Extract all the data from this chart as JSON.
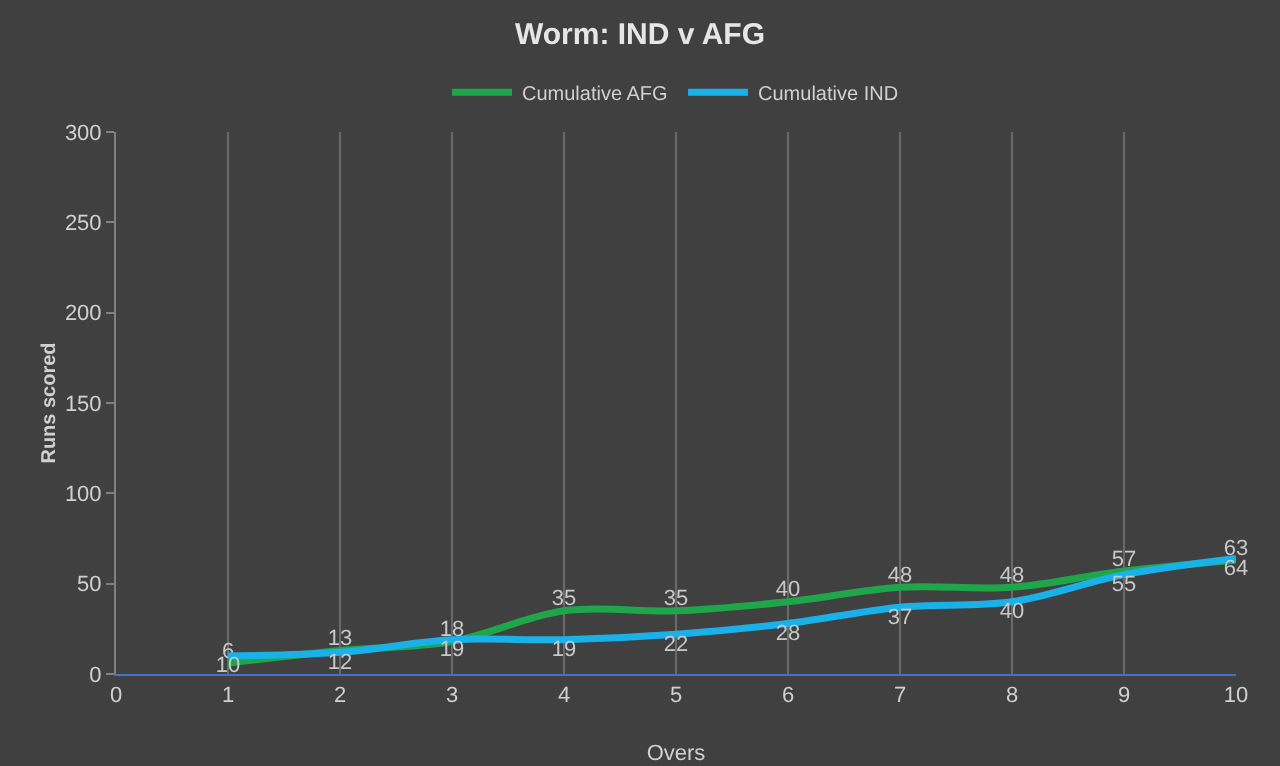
{
  "chart_data": {
    "type": "line",
    "title": "Worm: IND v AFG",
    "xlabel": "Overs",
    "ylabel": "Runs scored",
    "x": [
      1,
      2,
      3,
      4,
      5,
      6,
      7,
      8,
      9,
      10
    ],
    "series": [
      {
        "name": "Cumulative AFG",
        "color": "#1fa64a",
        "values": [
          6,
          13,
          18,
          35,
          35,
          40,
          48,
          48,
          57,
          63
        ]
      },
      {
        "name": "Cumulative IND",
        "color": "#1ab0e8",
        "values": [
          10,
          12,
          19,
          19,
          22,
          28,
          37,
          40,
          55,
          64
        ]
      }
    ],
    "xlim": [
      0,
      10
    ],
    "xticks": [
      0,
      1,
      2,
      3,
      4,
      5,
      6,
      7,
      8,
      9,
      10
    ],
    "ylim": [
      0,
      300
    ],
    "yticks": [
      0,
      50,
      100,
      150,
      200,
      250,
      300
    ],
    "grid": "x",
    "legend": "top",
    "data_labels": true,
    "marker": "none",
    "line_style": "solid"
  }
}
